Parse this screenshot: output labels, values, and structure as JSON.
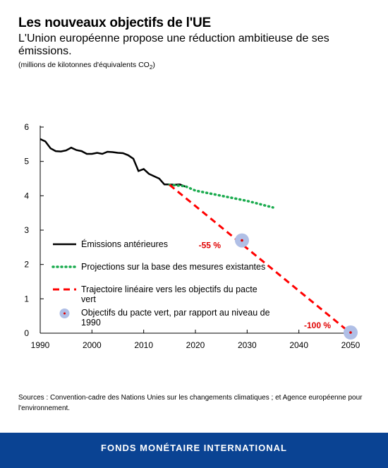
{
  "header": {
    "title": "Les nouveaux objectifs de l'UE",
    "subtitle": "L'Union européenne propose une réduction ambitieuse de ses émissions.",
    "units_prefix": "(millions de kilotonnes d'équivalents CO",
    "units_sub": "2",
    "units_suffix": ")"
  },
  "chart_data": {
    "type": "line",
    "xlim": [
      1990,
      2050
    ],
    "ylim": [
      0,
      6
    ],
    "x_ticks": [
      1990,
      2000,
      2010,
      2020,
      2030,
      2040,
      2050
    ],
    "y_ticks": [
      0,
      1,
      2,
      3,
      4,
      5,
      6
    ],
    "grid": false,
    "legend_position": "bottom-left",
    "series": [
      {
        "name": "Émissions antérieures",
        "style": "solid",
        "color": "#000000",
        "x": [
          1990,
          1991,
          1992,
          1993,
          1994,
          1995,
          1996,
          1997,
          1998,
          1999,
          2000,
          2001,
          2002,
          2003,
          2004,
          2005,
          2006,
          2007,
          2008,
          2009,
          2010,
          2011,
          2012,
          2013,
          2014,
          2015,
          2016,
          2017,
          2018
        ],
        "y": [
          5.65,
          5.58,
          5.38,
          5.3,
          5.29,
          5.32,
          5.4,
          5.33,
          5.3,
          5.22,
          5.22,
          5.25,
          5.22,
          5.28,
          5.27,
          5.25,
          5.24,
          5.18,
          5.08,
          4.72,
          4.78,
          4.64,
          4.57,
          4.5,
          4.33,
          4.33,
          4.32,
          4.33,
          4.27
        ]
      },
      {
        "name": "Projections sur la base des mesures existantes",
        "style": "dotted",
        "color": "#1aab4e",
        "x": [
          2015,
          2018,
          2020,
          2025,
          2030,
          2035
        ],
        "y": [
          4.32,
          4.28,
          4.15,
          4.0,
          3.85,
          3.66
        ]
      },
      {
        "name": "Trajectoire linéaire vers les objectifs du pacte vert",
        "style": "dashed",
        "color": "#ff0000",
        "x": [
          2015,
          2050
        ],
        "y": [
          4.32,
          0
        ]
      },
      {
        "name": "Objectifs du pacte vert, par rapport au niveau de 1990",
        "style": "marker",
        "color": "#b0bfe6",
        "x": [
          2029,
          2050
        ],
        "y": [
          2.7,
          0.02
        ]
      }
    ],
    "annotations": [
      {
        "text": "-55 %",
        "x": 2029,
        "y": 2.7
      },
      {
        "text": "-100 %",
        "x": 2050,
        "y": 0.02
      }
    ]
  },
  "source": "Sources : Convention-cadre des Nations Unies sur les changements climatiques ; et  Agence européenne pour l'environnement.",
  "footer": {
    "label": "FONDS MONÉTAIRE INTERNATIONAL"
  }
}
